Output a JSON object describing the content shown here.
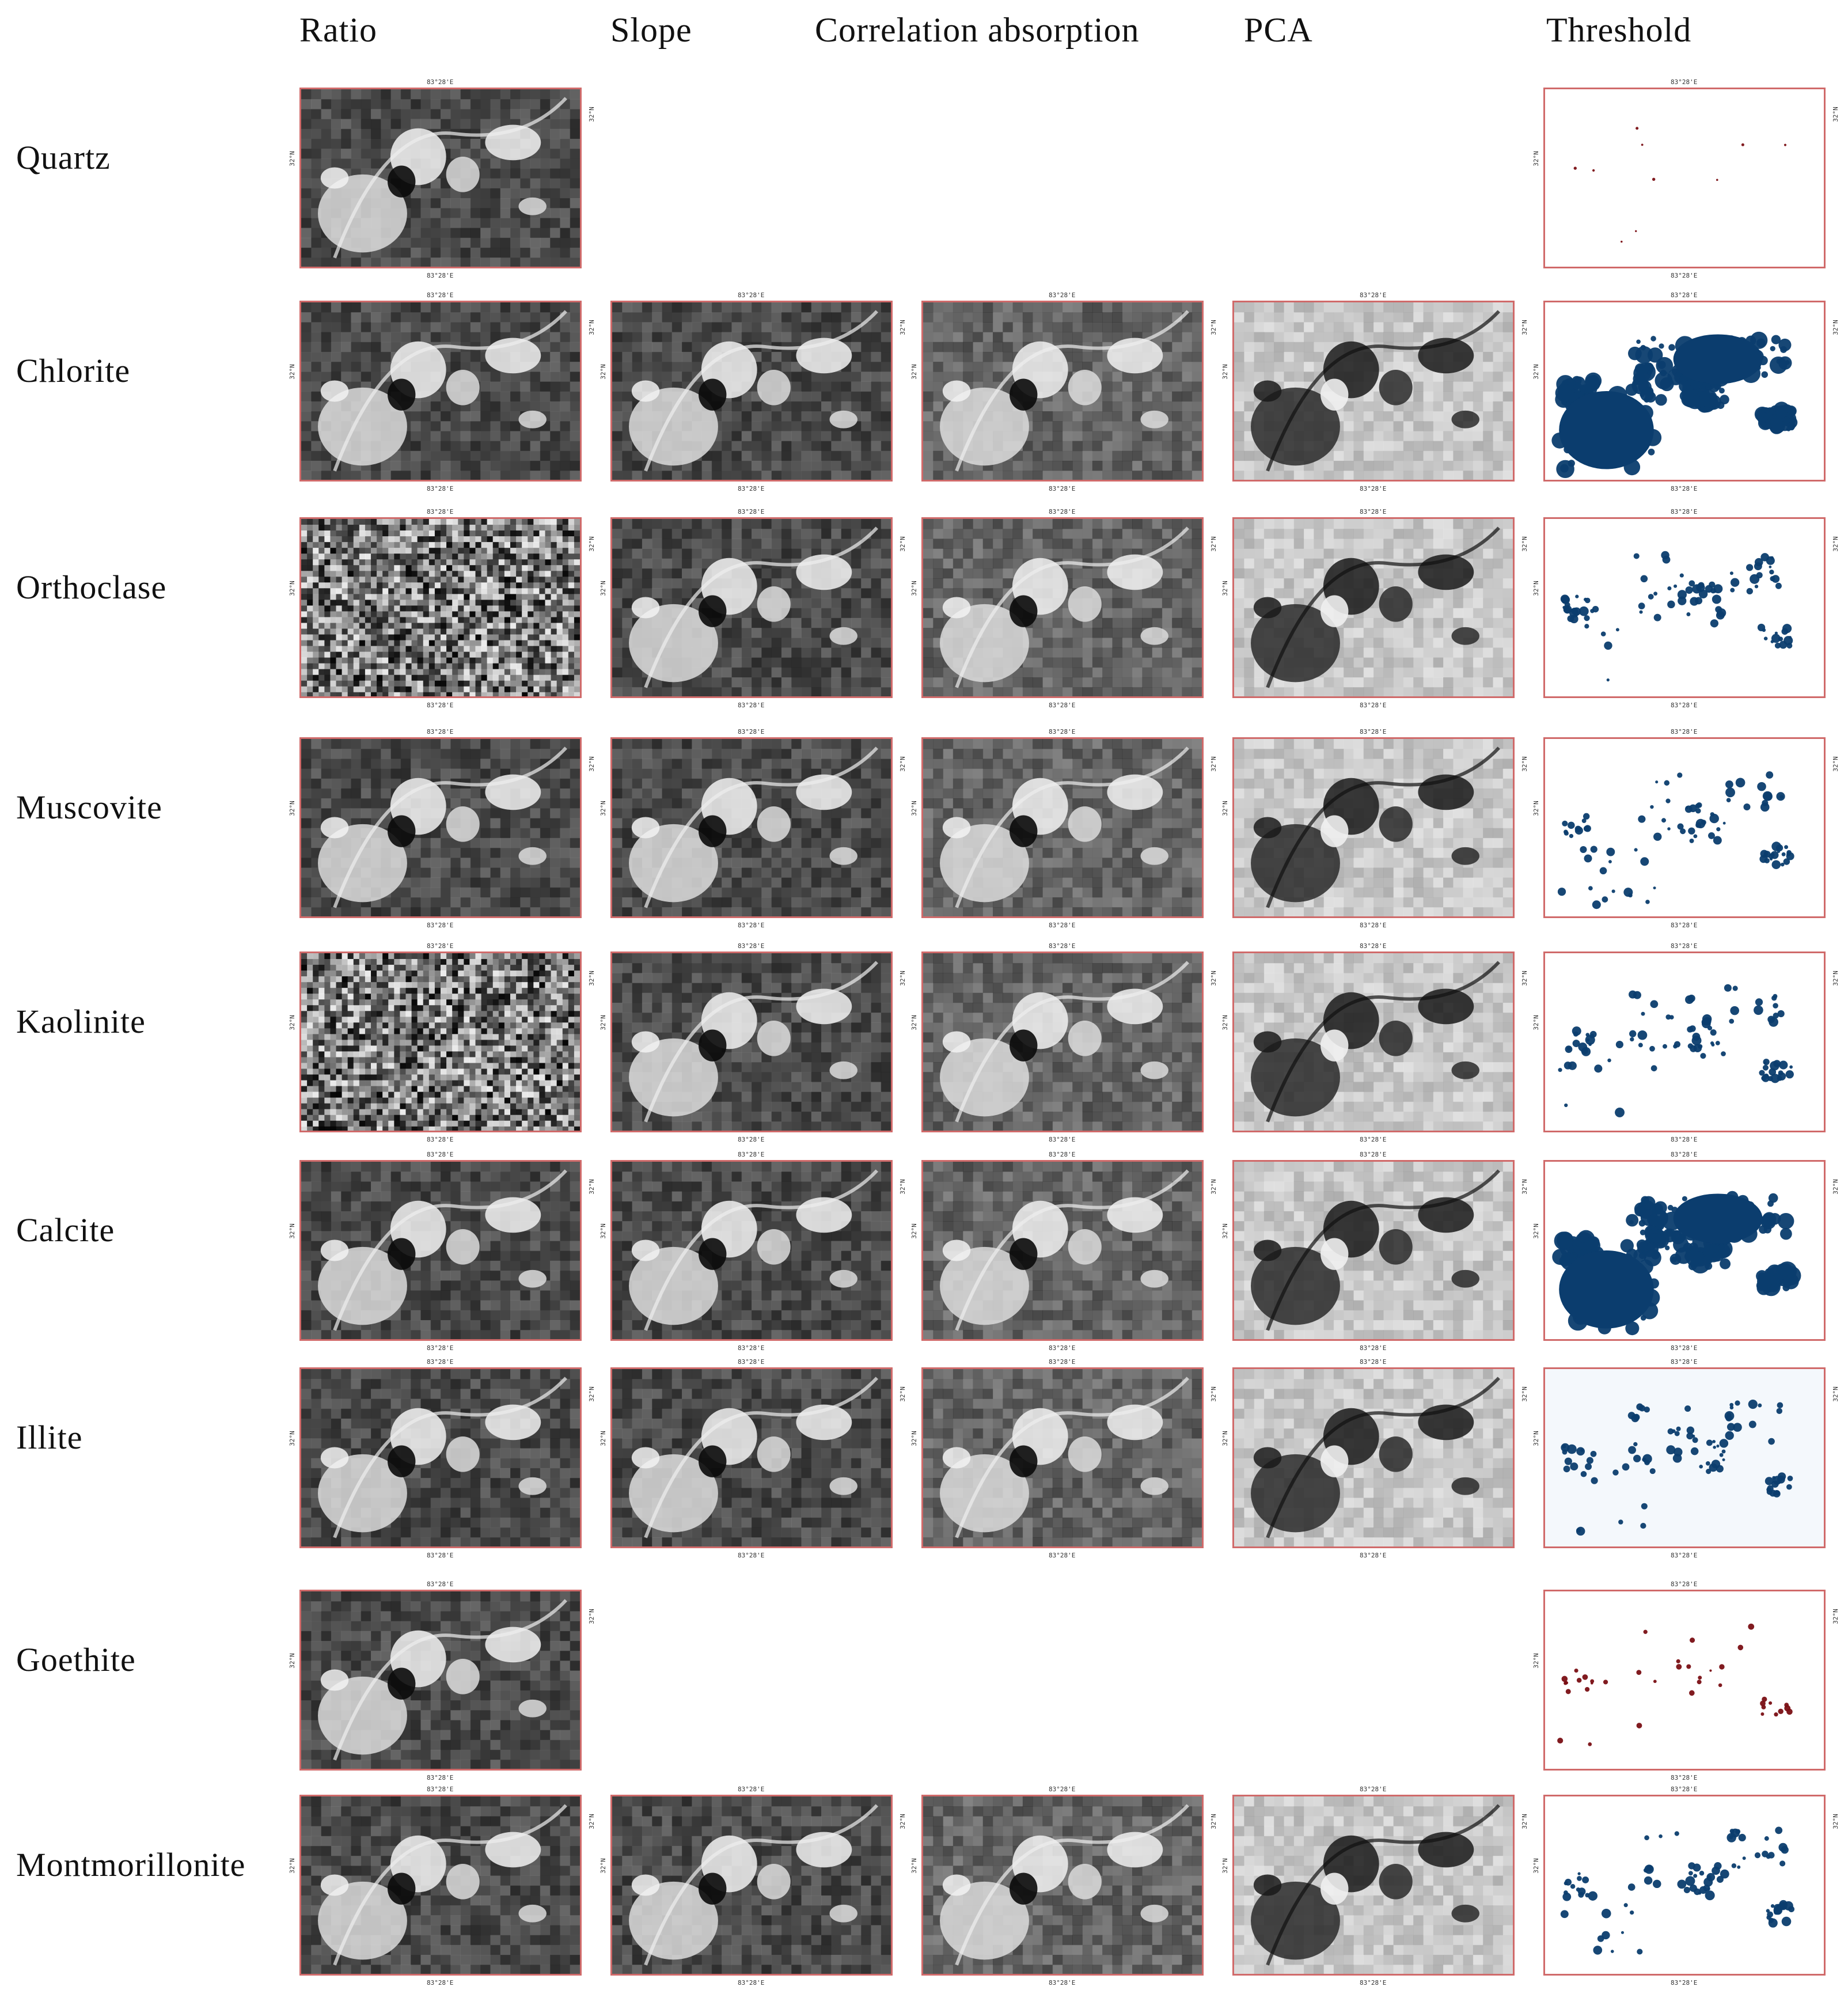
{
  "columns": [
    "Ratio",
    "Slope",
    "Correlation absorption",
    "PCA",
    "Threshold"
  ],
  "rows": [
    {
      "mineral": "Quartz",
      "panels": [
        "ratio",
        null,
        null,
        null,
        "threshold-red-sparse"
      ]
    },
    {
      "mineral": "Chlorite",
      "panels": [
        "ratio",
        "slope",
        "correlation",
        "pca",
        "threshold-blue-dense"
      ]
    },
    {
      "mineral": "Orthoclase",
      "panels": [
        "ratio-noisy",
        "slope",
        "correlation",
        "pca",
        "threshold-blue"
      ]
    },
    {
      "mineral": "Muscovite",
      "panels": [
        "ratio",
        "slope",
        "correlation",
        "pca",
        "threshold-blue"
      ]
    },
    {
      "mineral": "Kaolinite",
      "panels": [
        "ratio-noisy",
        "slope",
        "correlation",
        "pca",
        "threshold-blue"
      ]
    },
    {
      "mineral": "Calcite",
      "panels": [
        "ratio",
        "slope",
        "correlation",
        "pca",
        "threshold-blue-dense"
      ]
    },
    {
      "mineral": "Illite",
      "panels": [
        "ratio",
        "slope",
        "correlation",
        "pca",
        "threshold-blue-light"
      ]
    },
    {
      "mineral": "Goethite",
      "panels": [
        "ratio",
        null,
        null,
        null,
        "threshold-red"
      ]
    },
    {
      "mineral": "Montmorillonite",
      "panels": [
        "ratio",
        "slope",
        "correlation",
        "pca",
        "threshold-blue"
      ]
    }
  ],
  "map_labels": {
    "lon": "83°28'E",
    "lat": "32°N"
  },
  "colors": {
    "border": "#d06a6a",
    "threshold_blue": "#0b3d6e",
    "threshold_red": "#7a0f14"
  }
}
